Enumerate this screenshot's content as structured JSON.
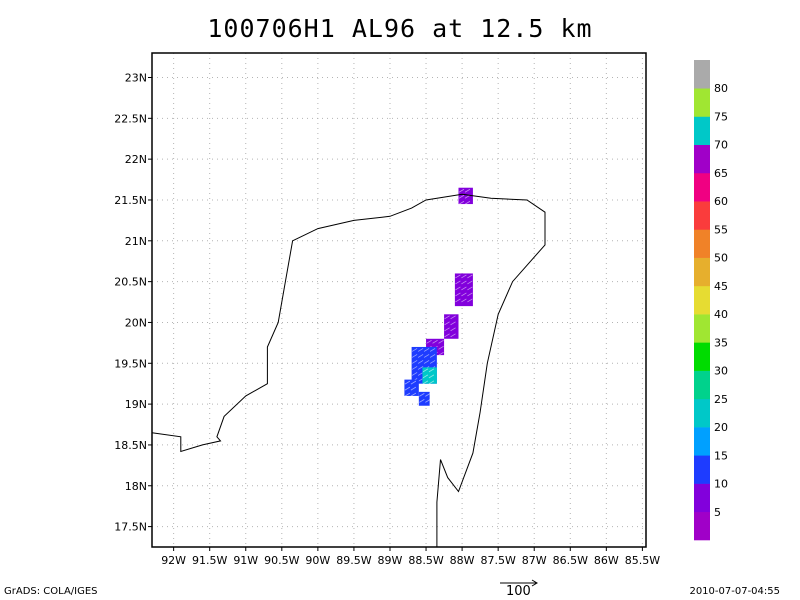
{
  "title": "100706H1 AL96 at 12.5 km",
  "footer": {
    "left": "GrADS: COLA/IGES",
    "right": "2010-07-07-04:55"
  },
  "reference_vector": {
    "label": "100"
  },
  "colors": {
    "coastline": "#000000",
    "grid": "#b4b4b4"
  },
  "chart_data": {
    "type": "map",
    "title": "100706H1 AL96 at 12.5 km",
    "grid": true,
    "xlim": [
      -92.3,
      -85.45
    ],
    "ylim": [
      17.25,
      23.3
    ],
    "x_ticks": [
      -92,
      -91.5,
      -91,
      -90.5,
      -90,
      -89.5,
      -89,
      -88.5,
      -88,
      -87.5,
      -87,
      -86.5,
      -86,
      -85.5
    ],
    "x_tick_labels": [
      "92W",
      "91.5W",
      "91W",
      "90.5W",
      "90W",
      "89.5W",
      "89W",
      "88.5W",
      "88W",
      "87.5W",
      "87W",
      "86.5W",
      "86W",
      "85.5W"
    ],
    "y_ticks": [
      17.5,
      18,
      18.5,
      19,
      19.5,
      20,
      20.5,
      21,
      21.5,
      22,
      22.5,
      23
    ],
    "y_tick_labels": [
      "17.5N",
      "18N",
      "18.5N",
      "19N",
      "19.5N",
      "20N",
      "20.5N",
      "21N",
      "21.5N",
      "22N",
      "22.5N",
      "23N"
    ],
    "coastline": [
      [
        -92.3,
        18.65
      ],
      [
        -91.9,
        18.6
      ],
      [
        -91.9,
        18.42
      ],
      [
        -91.6,
        18.5
      ],
      [
        -91.35,
        18.55
      ],
      [
        -91.4,
        18.6
      ],
      [
        -91.3,
        18.85
      ],
      [
        -91.0,
        19.1
      ],
      [
        -90.7,
        19.25
      ],
      [
        -90.7,
        19.7
      ],
      [
        -90.55,
        20.0
      ],
      [
        -90.45,
        20.5
      ],
      [
        -90.35,
        21.0
      ],
      [
        -90.0,
        21.15
      ],
      [
        -89.5,
        21.25
      ],
      [
        -89.0,
        21.3
      ],
      [
        -88.7,
        21.4
      ],
      [
        -88.5,
        21.5
      ],
      [
        -88.0,
        21.57
      ],
      [
        -87.6,
        21.52
      ],
      [
        -87.1,
        21.5
      ],
      [
        -86.85,
        21.35
      ],
      [
        -86.85,
        20.95
      ],
      [
        -87.3,
        20.5
      ],
      [
        -87.5,
        20.1
      ],
      [
        -87.65,
        19.5
      ],
      [
        -87.75,
        18.9
      ],
      [
        -87.85,
        18.4
      ],
      [
        -88.05,
        17.93
      ],
      [
        -88.2,
        18.1
      ],
      [
        -88.3,
        18.32
      ],
      [
        -88.35,
        17.8
      ],
      [
        -88.35,
        17.25
      ]
    ],
    "wind_clusters": [
      {
        "lon": [
          -88.05,
          -87.85
        ],
        "lat": [
          21.45,
          21.65
        ],
        "speed": 5
      },
      {
        "lon": [
          -88.1,
          -87.85
        ],
        "lat": [
          20.2,
          20.6
        ],
        "speed": 5
      },
      {
        "lon": [
          -88.25,
          -88.05
        ],
        "lat": [
          19.8,
          20.1
        ],
        "speed": 7
      },
      {
        "lon": [
          -88.5,
          -88.25
        ],
        "lat": [
          19.6,
          19.8
        ],
        "speed": 9
      },
      {
        "lon": [
          -88.7,
          -88.35
        ],
        "lat": [
          19.25,
          19.7
        ],
        "speed": 14
      },
      {
        "lon": [
          -88.55,
          -88.35
        ],
        "lat": [
          19.25,
          19.45
        ],
        "speed": 20
      },
      {
        "lon": [
          -88.8,
          -88.6
        ],
        "lat": [
          19.1,
          19.3
        ],
        "speed": 13
      },
      {
        "lon": [
          -88.6,
          -88.45
        ],
        "lat": [
          18.98,
          19.15
        ],
        "speed": 13
      }
    ],
    "colorbar": {
      "levels": [
        5,
        10,
        15,
        20,
        25,
        30,
        35,
        40,
        45,
        50,
        55,
        60,
        65,
        70,
        75,
        80
      ],
      "colors": [
        "#a000c8",
        "#8200dc",
        "#1e3cff",
        "#00a0ff",
        "#00c8c8",
        "#00d28c",
        "#00dc00",
        "#a0e632",
        "#e6dc32",
        "#e6af2d",
        "#f08228",
        "#fa3c3c",
        "#f00082",
        "#a000c8",
        "#00c8c8",
        "#a0e632",
        "#aaaaaa"
      ]
    }
  }
}
